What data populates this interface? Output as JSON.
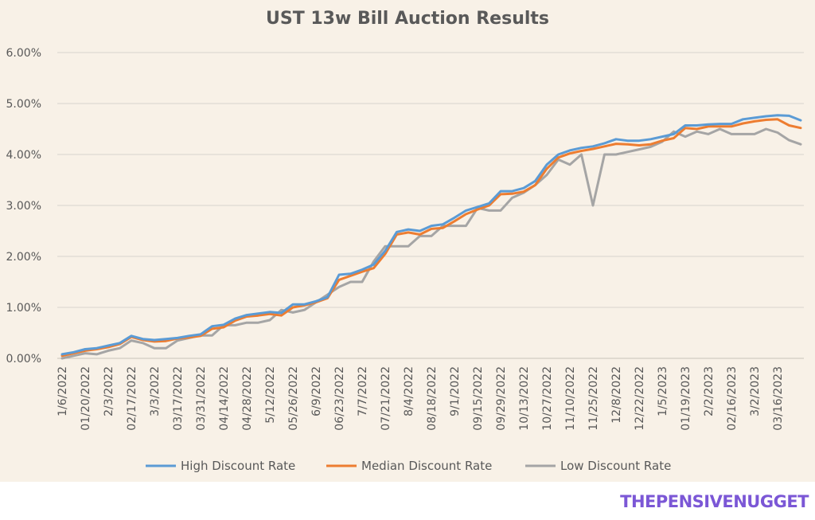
{
  "watermark": "THEPENSIVENUGGET",
  "colors": {
    "background": "#f8f1e7",
    "grid": "#d9d4cc",
    "axis": "#c7c2ba",
    "text": "#595959",
    "title": "#595959",
    "high": "#5b9bd5",
    "median": "#ed7d31",
    "low": "#a5a5a5",
    "watermark": "#7b57d6"
  },
  "chart_data": {
    "type": "line",
    "title": "UST 13w Bill Auction Results",
    "xlabel": "",
    "ylabel": "",
    "ylim": [
      0,
      6
    ],
    "yticks": [
      "0.00%",
      "1.00%",
      "2.00%",
      "3.00%",
      "4.00%",
      "5.00%",
      "6.00%"
    ],
    "grid": true,
    "legend": "bottom",
    "x_tick_labels": [
      "1/6/2022",
      "01/20/2022",
      "2/3/2022",
      "02/17/2022",
      "3/3/2022",
      "03/17/2022",
      "03/31/2022",
      "04/14/2022",
      "04/28/2022",
      "5/12/2022",
      "05/26/2022",
      "6/9/2022",
      "06/23/2022",
      "7/7/2022",
      "07/21/2022",
      "8/4/2022",
      "08/18/2022",
      "9/1/2022",
      "09/15/2022",
      "09/29/2022",
      "10/13/2022",
      "10/27/2022",
      "11/10/2022",
      "11/25/2022",
      "12/8/2022",
      "12/22/2022",
      "1/5/2023",
      "01/19/2023",
      "2/2/2023",
      "02/16/2023",
      "3/2/2023",
      "03/16/2023"
    ],
    "series": [
      {
        "name": "High Discount Rate",
        "color": "#5b9bd5",
        "values": [
          0.08,
          0.12,
          0.18,
          0.2,
          0.25,
          0.3,
          0.44,
          0.38,
          0.36,
          0.38,
          0.4,
          0.44,
          0.47,
          0.63,
          0.66,
          0.78,
          0.85,
          0.88,
          0.91,
          0.89,
          1.06,
          1.06,
          1.12,
          1.2,
          1.64,
          1.66,
          1.74,
          1.84,
          2.11,
          2.48,
          2.53,
          2.5,
          2.6,
          2.63,
          2.76,
          2.9,
          2.97,
          3.04,
          3.28,
          3.28,
          3.34,
          3.48,
          3.8,
          4.0,
          4.08,
          4.13,
          4.16,
          4.22,
          4.3,
          4.27,
          4.27,
          4.3,
          4.35,
          4.4,
          4.57,
          4.57,
          4.59,
          4.6,
          4.6,
          4.69,
          4.72,
          4.75,
          4.77,
          4.76,
          4.67
        ]
      },
      {
        "name": "Median Discount Rate",
        "color": "#ed7d31",
        "values": [
          0.05,
          0.1,
          0.15,
          0.18,
          0.22,
          0.28,
          0.42,
          0.36,
          0.33,
          0.34,
          0.39,
          0.41,
          0.44,
          0.58,
          0.61,
          0.74,
          0.82,
          0.84,
          0.87,
          0.84,
          1.0,
          1.04,
          1.1,
          1.18,
          1.54,
          1.62,
          1.7,
          1.77,
          2.05,
          2.43,
          2.47,
          2.43,
          2.54,
          2.56,
          2.69,
          2.83,
          2.92,
          3.0,
          3.22,
          3.23,
          3.27,
          3.4,
          3.72,
          3.94,
          4.02,
          4.07,
          4.11,
          4.16,
          4.21,
          4.2,
          4.18,
          4.2,
          4.27,
          4.32,
          4.52,
          4.5,
          4.55,
          4.55,
          4.55,
          4.61,
          4.65,
          4.68,
          4.69,
          4.57,
          4.52
        ]
      },
      {
        "name": "Low Discount Rate",
        "color": "#a5a5a5",
        "values": [
          0.0,
          0.05,
          0.1,
          0.08,
          0.15,
          0.2,
          0.35,
          0.3,
          0.2,
          0.2,
          0.35,
          0.4,
          0.45,
          0.45,
          0.65,
          0.65,
          0.7,
          0.7,
          0.75,
          0.95,
          0.9,
          0.95,
          1.1,
          1.25,
          1.4,
          1.5,
          1.5,
          1.9,
          2.2,
          2.2,
          2.2,
          2.4,
          2.4,
          2.6,
          2.6,
          2.6,
          2.95,
          2.9,
          2.9,
          3.15,
          3.25,
          3.4,
          3.6,
          3.9,
          3.8,
          4.0,
          3.0,
          4.0,
          4.0,
          4.05,
          4.1,
          4.15,
          4.25,
          4.45,
          4.35,
          4.45,
          4.4,
          4.5,
          4.4,
          4.4,
          4.4,
          4.5,
          4.43,
          4.28,
          4.2
        ]
      }
    ]
  }
}
